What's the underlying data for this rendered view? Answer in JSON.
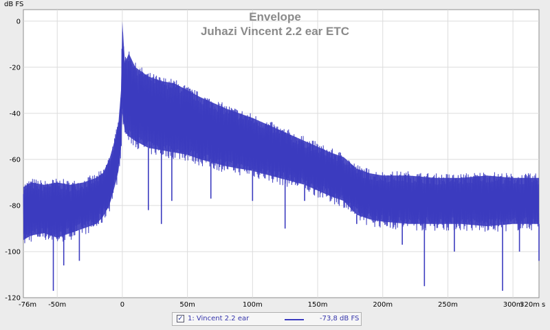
{
  "chart_data": {
    "type": "line",
    "title": "Envelope",
    "subtitle": "Juhazi Vincent 2.2 ear ETC",
    "ylabel": "dB FS",
    "xunit": "s",
    "xlim": [
      -76,
      320
    ],
    "ylim": [
      -120,
      5
    ],
    "grid": true,
    "x_tick_labels": [
      {
        "v": -76,
        "label": "-76m"
      },
      {
        "v": -50,
        "label": "-50m"
      },
      {
        "v": 0,
        "label": "0"
      },
      {
        "v": 50,
        "label": "50m"
      },
      {
        "v": 100,
        "label": "100m"
      },
      {
        "v": 150,
        "label": "150m"
      },
      {
        "v": 200,
        "label": "200m"
      },
      {
        "v": 250,
        "label": "250m"
      },
      {
        "v": 300,
        "label": "300m"
      },
      {
        "v": 320,
        "label": "320m"
      }
    ],
    "y_ticks": [
      0,
      -20,
      -40,
      -60,
      -80,
      -100,
      -120
    ],
    "series": [
      {
        "name": "1: Vincent 2.2 ear",
        "color": "#3b3bbf",
        "x_ms": [
          -76,
          -70,
          -60,
          -50,
          -40,
          -30,
          -20,
          -15,
          -10,
          -5,
          -3,
          -1,
          0,
          2,
          5,
          10,
          20,
          30,
          40,
          50,
          60,
          80,
          100,
          120,
          140,
          160,
          170,
          180,
          190,
          200,
          220,
          240,
          260,
          280,
          300,
          320
        ],
        "upper_db": [
          -72,
          -70,
          -71,
          -70,
          -71,
          -70,
          -68,
          -66,
          -60,
          -50,
          -44,
          -30,
          0,
          -18,
          -14,
          -20,
          -24,
          -26,
          -27,
          -30,
          -33,
          -38,
          -42,
          -47,
          -52,
          -57,
          -59,
          -64,
          -66,
          -67,
          -67,
          -68,
          -68,
          -67,
          -68,
          -68
        ],
        "lower_db": [
          -95,
          -93,
          -92,
          -94,
          -92,
          -90,
          -88,
          -85,
          -80,
          -70,
          -65,
          -55,
          -40,
          -48,
          -50,
          -52,
          -55,
          -56,
          -57,
          -58,
          -60,
          -63,
          -65,
          -68,
          -71,
          -76,
          -78,
          -84,
          -86,
          -87,
          -88,
          -88,
          -88,
          -89,
          -88,
          -88
        ],
        "dips": [
          {
            "x": -53,
            "y": -117
          },
          {
            "x": -45,
            "y": -106
          },
          {
            "x": -33,
            "y": -104
          },
          {
            "x": 20,
            "y": -82
          },
          {
            "x": 30,
            "y": -88
          },
          {
            "x": 38,
            "y": -78
          },
          {
            "x": 68,
            "y": -77
          },
          {
            "x": 100,
            "y": -78
          },
          {
            "x": 125,
            "y": -90
          },
          {
            "x": 140,
            "y": -78
          },
          {
            "x": 180,
            "y": -88
          },
          {
            "x": 215,
            "y": -97
          },
          {
            "x": 232,
            "y": -115
          },
          {
            "x": 255,
            "y": -100
          },
          {
            "x": 292,
            "y": -117
          },
          {
            "x": 305,
            "y": -100
          },
          {
            "x": 320,
            "y": -104
          }
        ]
      }
    ],
    "legend": {
      "position": "bottom-center",
      "entry_label": "1: Vincent 2.2 ear",
      "entry_value": "-73,8 dB FS",
      "checked": true
    }
  }
}
